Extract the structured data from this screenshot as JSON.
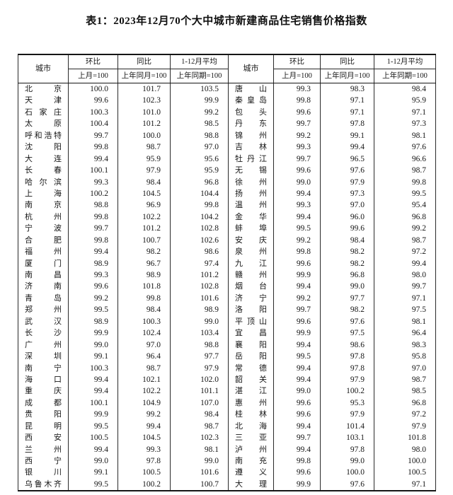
{
  "title": "表1：2023年12月70个大中城市新建商品住宅销售价格指数",
  "header": {
    "city": "城市",
    "mom": "环比",
    "mom_base": "上月=100",
    "yoy": "同比",
    "yoy_base": "上年同月=100",
    "avg": "1-12月平均",
    "avg_base": "上年同期=100"
  },
  "left_rows": [
    {
      "city": "北京",
      "mom": "100.0",
      "yoy": "101.7",
      "avg": "103.5"
    },
    {
      "city": "天津",
      "mom": "99.6",
      "yoy": "102.3",
      "avg": "99.9"
    },
    {
      "city": "石家庄",
      "mom": "100.3",
      "yoy": "101.0",
      "avg": "99.2"
    },
    {
      "city": "太原",
      "mom": "100.4",
      "yoy": "101.2",
      "avg": "98.5"
    },
    {
      "city": "呼和浩特",
      "mom": "99.7",
      "yoy": "100.0",
      "avg": "98.8"
    },
    {
      "city": "沈阳",
      "mom": "99.8",
      "yoy": "98.7",
      "avg": "97.0"
    },
    {
      "city": "大连",
      "mom": "99.4",
      "yoy": "95.9",
      "avg": "95.6"
    },
    {
      "city": "长春",
      "mom": "100.1",
      "yoy": "97.9",
      "avg": "95.9"
    },
    {
      "city": "哈尔滨",
      "mom": "99.3",
      "yoy": "98.4",
      "avg": "96.8"
    },
    {
      "city": "上海",
      "mom": "100.2",
      "yoy": "104.5",
      "avg": "104.4"
    },
    {
      "city": "南京",
      "mom": "98.8",
      "yoy": "96.9",
      "avg": "99.8"
    },
    {
      "city": "杭州",
      "mom": "99.8",
      "yoy": "102.2",
      "avg": "104.2"
    },
    {
      "city": "宁波",
      "mom": "99.7",
      "yoy": "101.2",
      "avg": "102.8"
    },
    {
      "city": "合肥",
      "mom": "99.8",
      "yoy": "100.7",
      "avg": "102.6"
    },
    {
      "city": "福州",
      "mom": "99.4",
      "yoy": "98.2",
      "avg": "98.6"
    },
    {
      "city": "厦门",
      "mom": "98.9",
      "yoy": "96.7",
      "avg": "97.4"
    },
    {
      "city": "南昌",
      "mom": "99.3",
      "yoy": "98.9",
      "avg": "101.2"
    },
    {
      "city": "济南",
      "mom": "99.6",
      "yoy": "101.8",
      "avg": "102.8"
    },
    {
      "city": "青岛",
      "mom": "99.2",
      "yoy": "99.8",
      "avg": "101.6"
    },
    {
      "city": "郑州",
      "mom": "99.5",
      "yoy": "98.4",
      "avg": "98.9"
    },
    {
      "city": "武汉",
      "mom": "98.9",
      "yoy": "100.3",
      "avg": "99.0"
    },
    {
      "city": "长沙",
      "mom": "99.9",
      "yoy": "102.4",
      "avg": "103.4"
    },
    {
      "city": "广州",
      "mom": "99.0",
      "yoy": "97.0",
      "avg": "98.8"
    },
    {
      "city": "深圳",
      "mom": "99.1",
      "yoy": "96.4",
      "avg": "97.7"
    },
    {
      "city": "南宁",
      "mom": "100.3",
      "yoy": "98.7",
      "avg": "97.9"
    },
    {
      "city": "海口",
      "mom": "99.4",
      "yoy": "102.1",
      "avg": "102.0"
    },
    {
      "city": "重庆",
      "mom": "99.4",
      "yoy": "102.2",
      "avg": "101.1"
    },
    {
      "city": "成都",
      "mom": "100.1",
      "yoy": "104.9",
      "avg": "107.0"
    },
    {
      "city": "贵阳",
      "mom": "99.9",
      "yoy": "99.2",
      "avg": "98.4"
    },
    {
      "city": "昆明",
      "mom": "99.5",
      "yoy": "99.4",
      "avg": "98.7"
    },
    {
      "city": "西安",
      "mom": "100.5",
      "yoy": "104.5",
      "avg": "102.3"
    },
    {
      "city": "兰州",
      "mom": "99.4",
      "yoy": "99.3",
      "avg": "98.1"
    },
    {
      "city": "西宁",
      "mom": "99.0",
      "yoy": "97.8",
      "avg": "99.0"
    },
    {
      "city": "银川",
      "mom": "99.1",
      "yoy": "100.5",
      "avg": "101.6"
    },
    {
      "city": "乌鲁木齐",
      "mom": "99.5",
      "yoy": "100.2",
      "avg": "100.7"
    }
  ],
  "right_rows": [
    {
      "city": "唐山",
      "mom": "99.3",
      "yoy": "98.3",
      "avg": "98.4"
    },
    {
      "city": "秦皇岛",
      "mom": "99.8",
      "yoy": "97.1",
      "avg": "95.9"
    },
    {
      "city": "包头",
      "mom": "99.6",
      "yoy": "97.1",
      "avg": "97.1"
    },
    {
      "city": "丹东",
      "mom": "99.7",
      "yoy": "97.8",
      "avg": "97.3"
    },
    {
      "city": "锦州",
      "mom": "99.2",
      "yoy": "99.1",
      "avg": "98.1"
    },
    {
      "city": "吉林",
      "mom": "99.3",
      "yoy": "99.4",
      "avg": "97.6"
    },
    {
      "city": "牡丹江",
      "mom": "99.7",
      "yoy": "96.5",
      "avg": "96.6"
    },
    {
      "city": "无锡",
      "mom": "99.6",
      "yoy": "97.6",
      "avg": "98.7"
    },
    {
      "city": "徐州",
      "mom": "99.0",
      "yoy": "97.9",
      "avg": "99.8"
    },
    {
      "city": "扬州",
      "mom": "99.4",
      "yoy": "97.3",
      "avg": "99.5"
    },
    {
      "city": "温州",
      "mom": "99.3",
      "yoy": "97.0",
      "avg": "95.4"
    },
    {
      "city": "金华",
      "mom": "99.4",
      "yoy": "96.0",
      "avg": "96.8"
    },
    {
      "city": "蚌埠",
      "mom": "99.5",
      "yoy": "99.6",
      "avg": "99.2"
    },
    {
      "city": "安庆",
      "mom": "99.2",
      "yoy": "98.4",
      "avg": "98.7"
    },
    {
      "city": "泉州",
      "mom": "99.8",
      "yoy": "98.2",
      "avg": "97.2"
    },
    {
      "city": "九江",
      "mom": "99.6",
      "yoy": "98.2",
      "avg": "99.4"
    },
    {
      "city": "赣州",
      "mom": "99.9",
      "yoy": "96.8",
      "avg": "98.0"
    },
    {
      "city": "烟台",
      "mom": "99.4",
      "yoy": "99.0",
      "avg": "99.7"
    },
    {
      "city": "济宁",
      "mom": "99.2",
      "yoy": "97.7",
      "avg": "97.1"
    },
    {
      "city": "洛阳",
      "mom": "99.7",
      "yoy": "98.2",
      "avg": "97.5"
    },
    {
      "city": "平顶山",
      "mom": "99.6",
      "yoy": "97.6",
      "avg": "98.1"
    },
    {
      "city": "宜昌",
      "mom": "99.9",
      "yoy": "97.5",
      "avg": "96.4"
    },
    {
      "city": "襄阳",
      "mom": "99.4",
      "yoy": "98.6",
      "avg": "98.3"
    },
    {
      "city": "岳阳",
      "mom": "99.5",
      "yoy": "97.8",
      "avg": "95.8"
    },
    {
      "city": "常德",
      "mom": "99.4",
      "yoy": "97.8",
      "avg": "97.0"
    },
    {
      "city": "韶关",
      "mom": "99.4",
      "yoy": "97.9",
      "avg": "98.7"
    },
    {
      "city": "湛江",
      "mom": "99.0",
      "yoy": "100.2",
      "avg": "98.5"
    },
    {
      "city": "惠州",
      "mom": "99.6",
      "yoy": "95.3",
      "avg": "96.8"
    },
    {
      "city": "桂林",
      "mom": "99.6",
      "yoy": "97.9",
      "avg": "97.2"
    },
    {
      "city": "北海",
      "mom": "99.4",
      "yoy": "101.4",
      "avg": "97.9"
    },
    {
      "city": "三亚",
      "mom": "99.7",
      "yoy": "103.1",
      "avg": "101.8"
    },
    {
      "city": "泸州",
      "mom": "99.4",
      "yoy": "97.8",
      "avg": "98.0"
    },
    {
      "city": "南充",
      "mom": "99.8",
      "yoy": "99.0",
      "avg": "100.0"
    },
    {
      "city": "遵义",
      "mom": "99.6",
      "yoy": "100.0",
      "avg": "100.5"
    },
    {
      "city": "大理",
      "mom": "99.9",
      "yoy": "97.6",
      "avg": "97.1"
    }
  ]
}
